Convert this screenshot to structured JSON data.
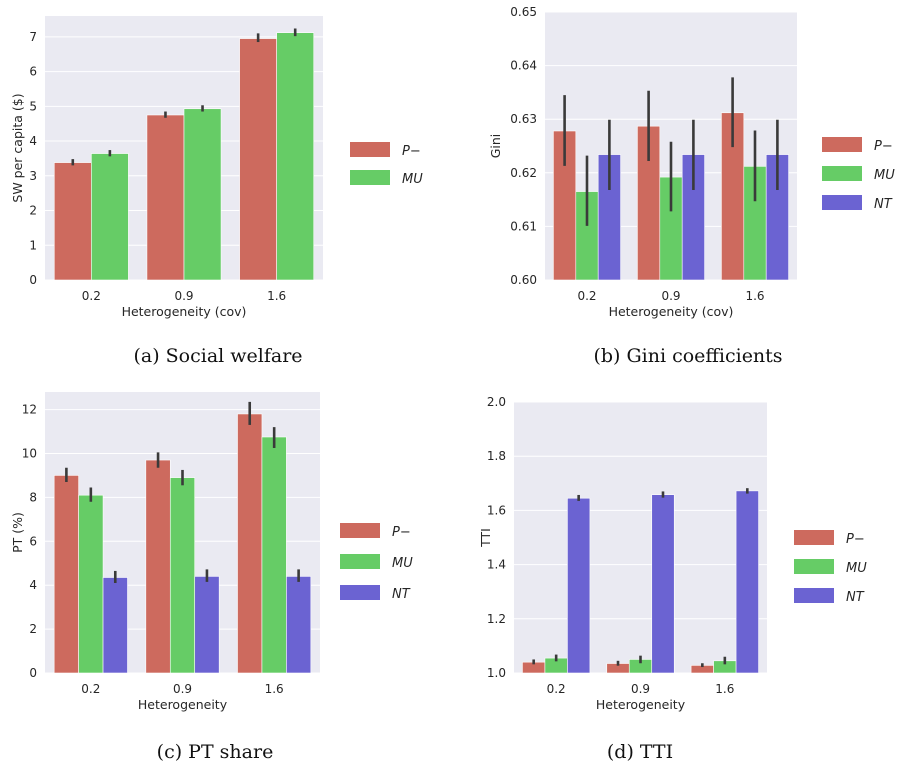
{
  "palette": {
    "P-": "#cd6a5e",
    "MU": "#66cc66",
    "NT": "#6b63d2",
    "panel_bg": "#eaeaf2",
    "grid": "#ffffff",
    "errbar": "#3a3a3a"
  },
  "chart_data": [
    {
      "type": "bar",
      "caption": "(a) Social welfare",
      "xlabel": "Heterogeneity (cov)",
      "ylabel": "SW per capita ($)",
      "categories": [
        "0.2",
        "0.9",
        "1.6"
      ],
      "ylim": [
        0,
        7.6
      ],
      "yticks": [
        0,
        1,
        2,
        3,
        4,
        5,
        6,
        7
      ],
      "ytick_labels": [
        "0",
        "1",
        "2",
        "3",
        "4",
        "5",
        "6",
        "7"
      ],
      "series": [
        {
          "name": "P−",
          "key": "P-",
          "values": [
            3.38,
            4.75,
            6.95
          ],
          "err_low": [
            3.3,
            4.67,
            6.85
          ],
          "err_high": [
            3.48,
            4.85,
            7.1
          ]
        },
        {
          "name": "MU",
          "key": "MU",
          "values": [
            3.64,
            4.93,
            7.12
          ],
          "err_low": [
            3.56,
            4.85,
            7.02
          ],
          "err_high": [
            3.74,
            5.03,
            7.24
          ]
        }
      ],
      "legend": "right"
    },
    {
      "type": "bar",
      "caption": "(b) Gini coefficients",
      "xlabel": "Heterogeneity (cov)",
      "ylabel": "Gini",
      "categories": [
        "0.2",
        "0.9",
        "1.6"
      ],
      "ylim": [
        0.6,
        0.65
      ],
      "yticks": [
        0.6,
        0.61,
        0.62,
        0.63,
        0.64,
        0.65
      ],
      "ytick_labels": [
        "0.60",
        "0.61",
        "0.62",
        "0.63",
        "0.64",
        "0.65"
      ],
      "series": [
        {
          "name": "P−",
          "key": "P-",
          "values": [
            0.6278,
            0.6287,
            0.6312
          ],
          "err_low": [
            0.6213,
            0.6222,
            0.6248
          ],
          "err_high": [
            0.6345,
            0.6353,
            0.6378
          ]
        },
        {
          "name": "MU",
          "key": "MU",
          "values": [
            0.6165,
            0.6192,
            0.6212
          ],
          "err_low": [
            0.6101,
            0.6128,
            0.6147
          ],
          "err_high": [
            0.6232,
            0.6258,
            0.6279
          ]
        },
        {
          "name": "NT",
          "key": "NT",
          "values": [
            0.6234,
            0.6234,
            0.6234
          ],
          "err_low": [
            0.6168,
            0.6168,
            0.6168
          ],
          "err_high": [
            0.6299,
            0.6299,
            0.6299
          ]
        }
      ],
      "legend": "right"
    },
    {
      "type": "bar",
      "caption": "(c) PT share",
      "xlabel": "Heterogeneity",
      "ylabel": "PT (%)",
      "categories": [
        "0.2",
        "0.9",
        "1.6"
      ],
      "ylim": [
        0,
        12.8
      ],
      "yticks": [
        0,
        2,
        4,
        6,
        8,
        10,
        12
      ],
      "ytick_labels": [
        "0",
        "2",
        "4",
        "6",
        "8",
        "10",
        "12"
      ],
      "series": [
        {
          "name": "P−",
          "key": "P-",
          "values": [
            9.0,
            9.7,
            11.8
          ],
          "err_low": [
            8.7,
            9.35,
            11.3
          ],
          "err_high": [
            9.35,
            10.05,
            12.35
          ]
        },
        {
          "name": "MU",
          "key": "MU",
          "values": [
            8.1,
            8.9,
            10.75
          ],
          "err_low": [
            7.8,
            8.55,
            10.25
          ],
          "err_high": [
            8.45,
            9.25,
            11.2
          ]
        },
        {
          "name": "NT",
          "key": "NT",
          "values": [
            4.35,
            4.4,
            4.4
          ],
          "err_low": [
            4.1,
            4.15,
            4.15
          ],
          "err_high": [
            4.65,
            4.72,
            4.72
          ]
        }
      ],
      "legend": "right"
    },
    {
      "type": "bar",
      "caption": "(d) TTI",
      "xlabel": "Heterogeneity",
      "ylabel": "TTI",
      "categories": [
        "0.2",
        "0.9",
        "1.6"
      ],
      "ylim": [
        1.0,
        2.0
      ],
      "yticks": [
        1.0,
        1.2,
        1.4,
        1.6,
        1.8,
        2.0
      ],
      "ytick_labels": [
        "1.0",
        "1.2",
        "1.4",
        "1.6",
        "1.8",
        "2.0"
      ],
      "series": [
        {
          "name": "P−",
          "key": "P-",
          "values": [
            1.04,
            1.035,
            1.028
          ],
          "err_low": [
            1.032,
            1.027,
            1.022
          ],
          "err_high": [
            1.05,
            1.045,
            1.036
          ]
        },
        {
          "name": "MU",
          "key": "MU",
          "values": [
            1.055,
            1.05,
            1.045
          ],
          "err_low": [
            1.043,
            1.036,
            1.032
          ],
          "err_high": [
            1.068,
            1.064,
            1.06
          ]
        },
        {
          "name": "NT",
          "key": "NT",
          "values": [
            1.645,
            1.658,
            1.672
          ],
          "err_low": [
            1.635,
            1.647,
            1.662
          ],
          "err_high": [
            1.657,
            1.67,
            1.682
          ]
        }
      ],
      "legend": "right"
    }
  ]
}
